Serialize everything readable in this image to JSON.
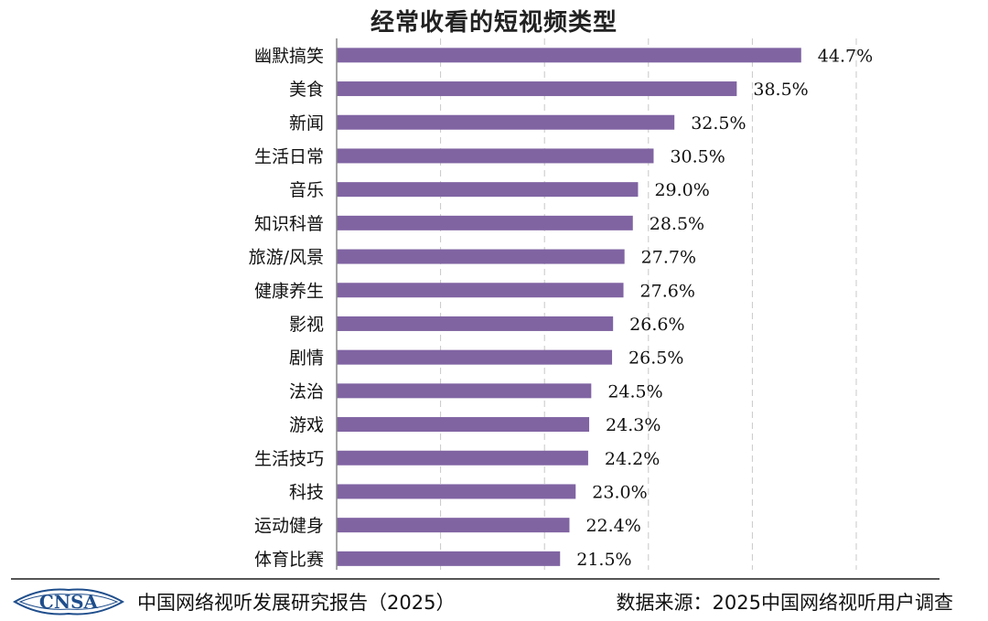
{
  "chart_data": {
    "type": "bar",
    "orientation": "horizontal",
    "title": "经常收看的短视频类型",
    "categories": [
      "幽默搞笑",
      "美食",
      "新闻",
      "生活日常",
      "音乐",
      "知识科普",
      "旅游/风景",
      "健康养生",
      "影视",
      "剧情",
      "法治",
      "游戏",
      "生活技巧",
      "科技",
      "运动健身",
      "体育比赛"
    ],
    "values": [
      44.7,
      38.5,
      32.5,
      30.5,
      29.0,
      28.5,
      27.7,
      27.6,
      26.6,
      26.5,
      24.5,
      24.3,
      24.2,
      23.0,
      22.4,
      21.5
    ],
    "data_labels": [
      "44.7%",
      "38.5%",
      "32.5%",
      "30.5%",
      "29.0%",
      "28.5%",
      "27.7%",
      "27.6%",
      "26.6%",
      "26.5%",
      "24.5%",
      "24.3%",
      "24.2%",
      "23.0%",
      "22.4%",
      "21.5%"
    ],
    "xlim": [
      0,
      50
    ],
    "grid": true,
    "bar_color": "#8064A2"
  },
  "footer": {
    "logo_text": "CNSA",
    "report": "中国网络视听发展研究报告（2025）",
    "source": "数据来源：2025中国网络视听用户调查"
  }
}
